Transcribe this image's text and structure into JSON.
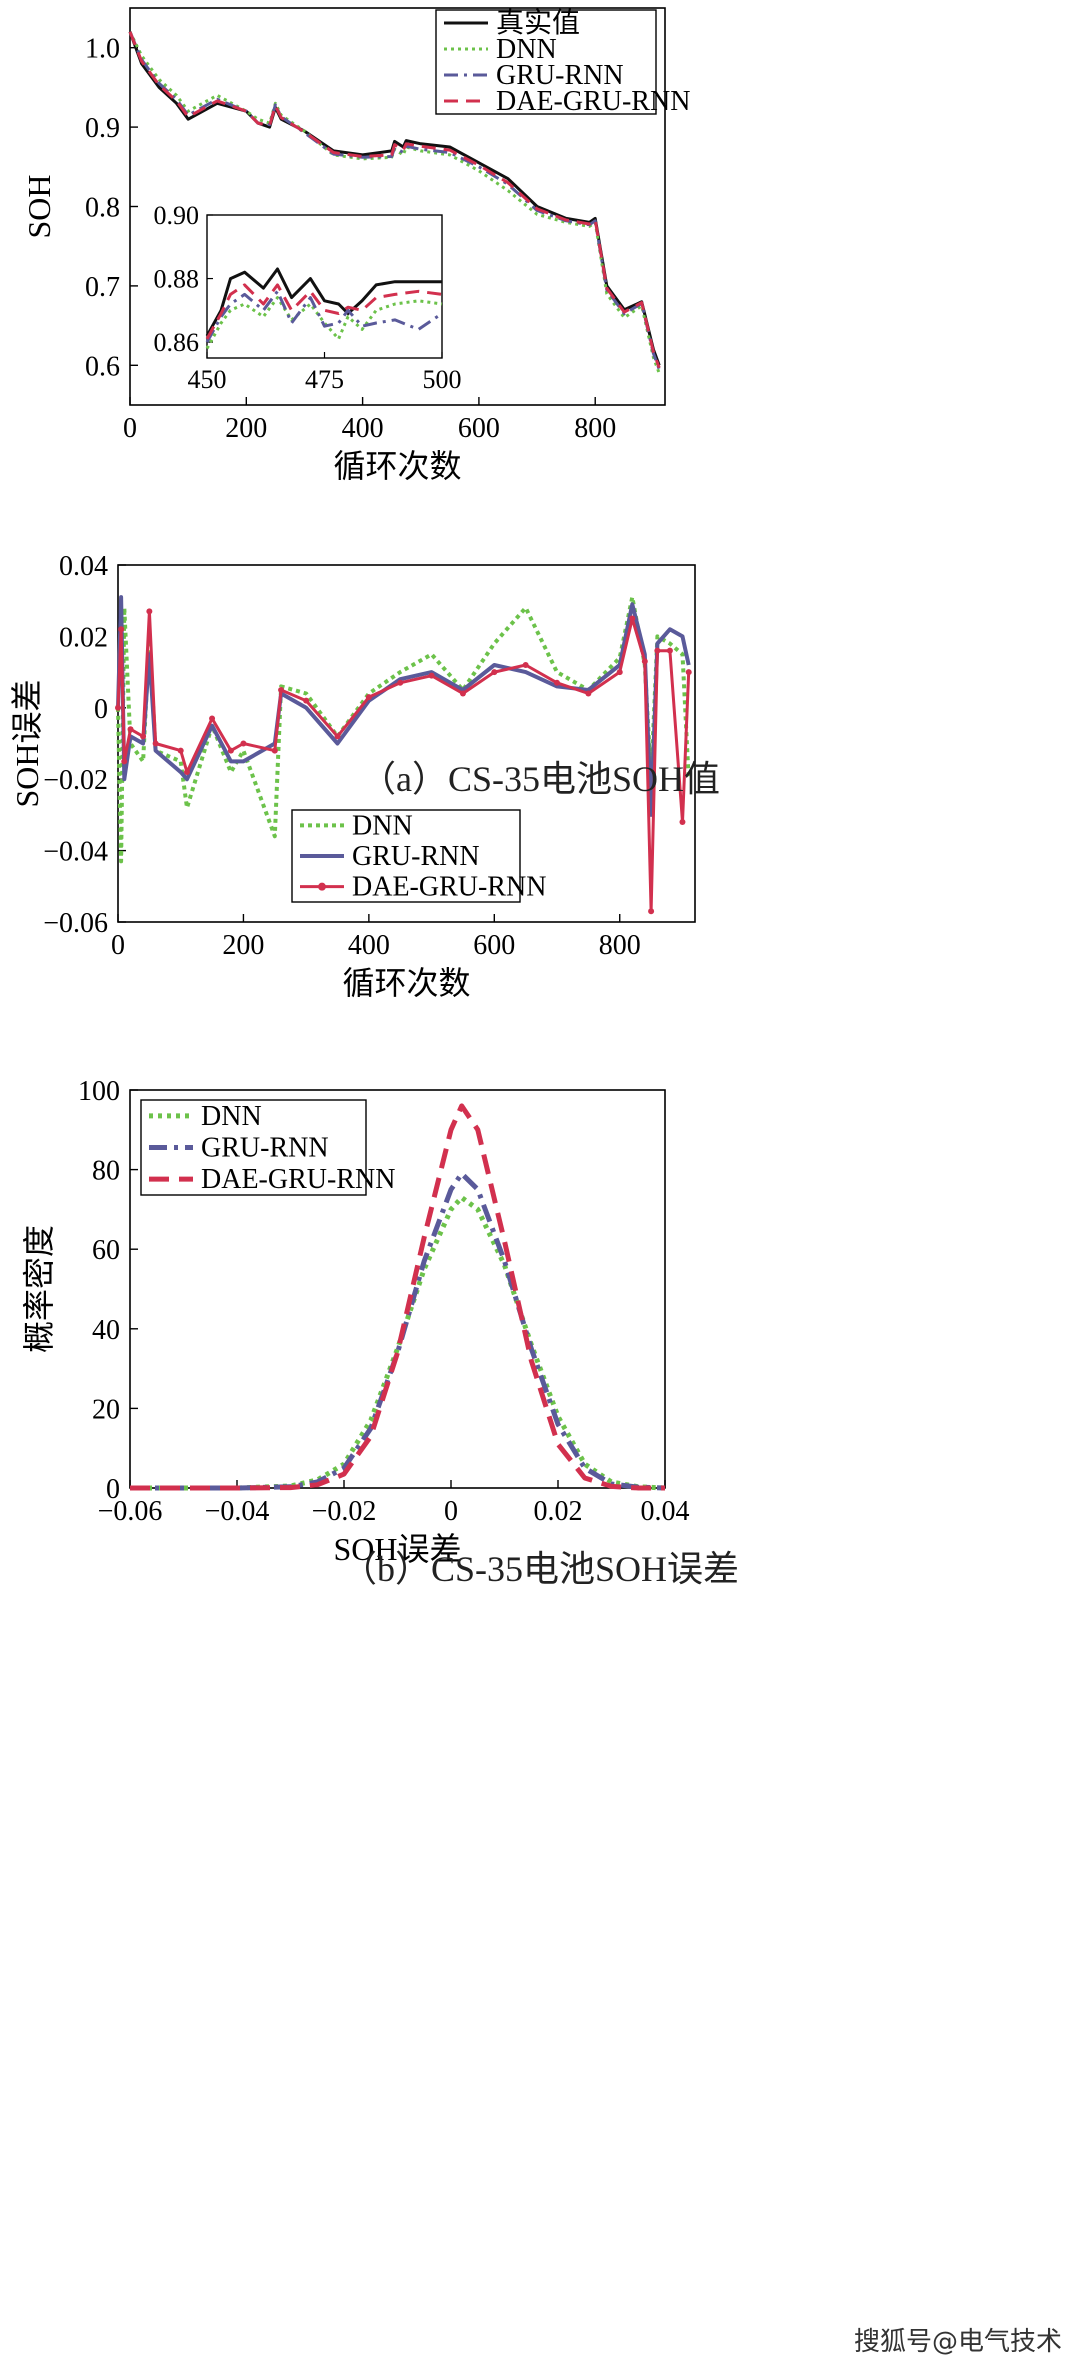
{
  "captions": {
    "a": "（a）CS-35电池SOH值",
    "b": "（b）CS-35电池SOH误差"
  },
  "watermark": "搜狐号@电气技术",
  "colors": {
    "actual": "#111111",
    "dnn": "#6cc24a",
    "gru": "#5a5a9a",
    "dae": "#d2304e"
  },
  "chart_data": [
    {
      "type": "line",
      "xlabel": "循环次数",
      "ylabel": "SOH",
      "xlim": [
        0,
        920
      ],
      "ylim": [
        0.55,
        1.05
      ],
      "xticks": [
        "0",
        "200",
        "400",
        "600",
        "800"
      ],
      "yticks": [
        "0.6",
        "0.7",
        "0.8",
        "0.9",
        "1.0"
      ],
      "legend_position": "top-right",
      "x": [
        0,
        20,
        50,
        80,
        100,
        150,
        200,
        220,
        240,
        250,
        260,
        300,
        350,
        400,
        450,
        455,
        470,
        475,
        500,
        550,
        600,
        650,
        700,
        750,
        790,
        800,
        820,
        850,
        880,
        900,
        910
      ],
      "series": [
        {
          "name": "真实值",
          "values": [
            1.02,
            0.98,
            0.95,
            0.93,
            0.91,
            0.93,
            0.92,
            0.905,
            0.9,
            0.925,
            0.91,
            0.895,
            0.87,
            0.865,
            0.87,
            0.882,
            0.875,
            0.883,
            0.879,
            0.875,
            0.855,
            0.835,
            0.8,
            0.785,
            0.78,
            0.785,
            0.7,
            0.67,
            0.68,
            0.62,
            0.6
          ]
        },
        {
          "name": "DNN",
          "values": [
            1.02,
            0.99,
            0.96,
            0.94,
            0.92,
            0.94,
            0.92,
            0.91,
            0.905,
            0.93,
            0.915,
            0.895,
            0.865,
            0.86,
            0.862,
            0.872,
            0.865,
            0.875,
            0.87,
            0.865,
            0.845,
            0.82,
            0.79,
            0.78,
            0.775,
            0.78,
            0.69,
            0.66,
            0.675,
            0.61,
            0.59
          ]
        },
        {
          "name": "GRU-RNN",
          "values": [
            1.02,
            0.985,
            0.955,
            0.935,
            0.915,
            0.935,
            0.92,
            0.905,
            0.903,
            0.928,
            0.913,
            0.893,
            0.866,
            0.862,
            0.863,
            0.874,
            0.868,
            0.876,
            0.872,
            0.868,
            0.85,
            0.828,
            0.795,
            0.782,
            0.777,
            0.782,
            0.695,
            0.665,
            0.678,
            0.615,
            0.595
          ]
        },
        {
          "name": "DAE-GRU-RNN",
          "values": [
            1.02,
            0.983,
            0.953,
            0.933,
            0.913,
            0.933,
            0.92,
            0.905,
            0.902,
            0.927,
            0.912,
            0.894,
            0.868,
            0.863,
            0.865,
            0.878,
            0.871,
            0.879,
            0.876,
            0.871,
            0.852,
            0.83,
            0.797,
            0.783,
            0.778,
            0.783,
            0.697,
            0.667,
            0.679,
            0.617,
            0.597
          ]
        }
      ],
      "inset": {
        "xlim": [
          450,
          500
        ],
        "ylim": [
          0.855,
          0.9
        ],
        "xticks": [
          "450",
          "475",
          "500"
        ],
        "yticks": [
          "0.86",
          "0.88",
          "0.90"
        ],
        "x": [
          450,
          453,
          455,
          458,
          462,
          465,
          468,
          472,
          475,
          478,
          480,
          483,
          486,
          490,
          495,
          500
        ],
        "series": [
          {
            "name": "真实值",
            "values": [
              0.862,
              0.87,
              0.88,
              0.882,
              0.877,
              0.883,
              0.874,
              0.88,
              0.873,
              0.872,
              0.869,
              0.873,
              0.878,
              0.879,
              0.879,
              0.879
            ]
          },
          {
            "name": "DNN",
            "values": [
              0.858,
              0.866,
              0.87,
              0.872,
              0.868,
              0.874,
              0.867,
              0.872,
              0.866,
              0.861,
              0.868,
              0.864,
              0.87,
              0.872,
              0.873,
              0.872
            ]
          },
          {
            "name": "GRU-RNN",
            "values": [
              0.86,
              0.868,
              0.872,
              0.875,
              0.87,
              0.876,
              0.866,
              0.874,
              0.865,
              0.866,
              0.87,
              0.865,
              0.866,
              0.867,
              0.864,
              0.869
            ]
          },
          {
            "name": "DAE-GRU-RNN",
            "values": [
              0.861,
              0.869,
              0.875,
              0.878,
              0.872,
              0.878,
              0.87,
              0.876,
              0.87,
              0.869,
              0.871,
              0.87,
              0.874,
              0.875,
              0.876,
              0.875
            ]
          }
        ]
      }
    },
    {
      "type": "line",
      "xlabel": "循环次数",
      "ylabel": "SOH误差",
      "xlim": [
        0,
        920
      ],
      "ylim": [
        -0.06,
        0.04
      ],
      "xticks": [
        "0",
        "200",
        "400",
        "600",
        "800"
      ],
      "yticks": [
        "0.04",
        "0.02",
        "0",
        "−0.02",
        "−0.04",
        "−0.06"
      ],
      "legend_position": "bottom-center",
      "x": [
        0,
        5,
        10,
        20,
        40,
        50,
        60,
        100,
        110,
        150,
        180,
        200,
        250,
        260,
        300,
        350,
        400,
        450,
        500,
        550,
        600,
        650,
        700,
        750,
        800,
        820,
        840,
        850,
        860,
        880,
        900,
        910
      ],
      "series": [
        {
          "name": "DNN",
          "values": [
            0,
            -0.043,
            0.028,
            -0.01,
            -0.015,
            0.02,
            -0.012,
            -0.015,
            -0.028,
            -0.005,
            -0.018,
            -0.012,
            -0.036,
            0.006,
            0.004,
            -0.008,
            0.004,
            0.01,
            0.015,
            0.005,
            0.018,
            0.028,
            0.01,
            0.005,
            0.014,
            0.031,
            0.012,
            -0.02,
            0.02,
            0.018,
            0.015,
            -0.02
          ]
        },
        {
          "name": "GRU-RNN",
          "values": [
            0,
            0.031,
            -0.02,
            -0.008,
            -0.01,
            0.015,
            -0.012,
            -0.018,
            -0.02,
            -0.005,
            -0.015,
            -0.015,
            -0.01,
            0.004,
            0.0,
            -0.01,
            0.002,
            0.008,
            0.01,
            0.005,
            0.012,
            0.01,
            0.006,
            0.005,
            0.012,
            0.029,
            0.015,
            -0.03,
            0.018,
            0.022,
            0.02,
            0.012
          ]
        },
        {
          "name": "DAE-GRU-RNN",
          "values": [
            0,
            0.022,
            -0.015,
            -0.006,
            -0.008,
            0.027,
            -0.01,
            -0.012,
            -0.018,
            -0.003,
            -0.012,
            -0.01,
            -0.012,
            0.005,
            0.002,
            -0.008,
            0.003,
            0.007,
            0.009,
            0.004,
            0.01,
            0.012,
            0.007,
            0.004,
            0.01,
            0.025,
            0.013,
            -0.057,
            0.016,
            0.016,
            -0.032,
            0.01
          ]
        }
      ]
    },
    {
      "type": "line",
      "xlabel": "SOH误差",
      "ylabel": "概率密度",
      "xlim": [
        -0.06,
        0.04
      ],
      "ylim": [
        0,
        100
      ],
      "xticks": [
        "−0.06",
        "−0.04",
        "−0.02",
        "0",
        "0.02",
        "0.04"
      ],
      "yticks": [
        "0",
        "20",
        "40",
        "60",
        "80",
        "100"
      ],
      "legend_position": "top-left",
      "x": [
        -0.06,
        -0.05,
        -0.04,
        -0.03,
        -0.025,
        -0.02,
        -0.015,
        -0.01,
        -0.005,
        0,
        0.002,
        0.005,
        0.01,
        0.015,
        0.02,
        0.025,
        0.03,
        0.035,
        0.04
      ],
      "series": [
        {
          "name": "DNN",
          "values": [
            0,
            0,
            0,
            0.5,
            2,
            6,
            17,
            35,
            55,
            70,
            73,
            70,
            56,
            36,
            18,
            6,
            1.5,
            0.3,
            0
          ]
        },
        {
          "name": "GRU-RNN",
          "values": [
            0,
            0,
            0,
            0.3,
            1.5,
            5,
            15,
            34,
            57,
            75,
            79,
            75,
            57,
            35,
            16,
            5,
            1,
            0.2,
            0
          ]
        },
        {
          "name": "DAE-GRU-RNN",
          "values": [
            0,
            0,
            0,
            0.1,
            0.8,
            3.5,
            13,
            34,
            63,
            90,
            96,
            90,
            62,
            32,
            11,
            2.5,
            0.4,
            0,
            0
          ]
        }
      ]
    }
  ]
}
